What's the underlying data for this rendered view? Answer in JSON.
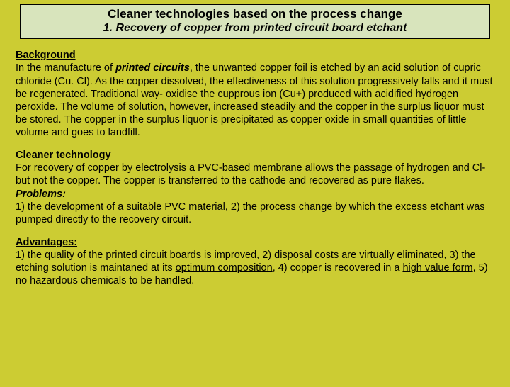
{
  "header": {
    "title": "Cleaner technologies based on the process change",
    "subtitle": "1. Recovery of copper from printed circuit board etchant"
  },
  "background": {
    "heading": "Background",
    "t1": "In the manufacture of ",
    "t2": "printed circuits",
    "t3": ", the unwanted copper foil is etched by an acid solution of cupric chloride (Cu. Cl). As the copper dissolved, the effectiveness of this solution progressively falls and it must be regenerated. Traditional way- oxidise the cupprous ion (Cu+) produced with  acidified hydrogen peroxide. The volume of solution, however, increased steadily and the copper in the surplus liquor must be stored. The copper in the surplus liquor is precipitated as copper oxide in small quantities of little volume and goes to landfill."
  },
  "cleaner": {
    "heading": "Cleaner technology",
    "t1": "For recovery of copper by electrolysis a ",
    "t2": "PVC-based membrane",
    "t3": " allows the passage of hydrogen and Cl- but not the copper. The copper is transferred  to the cathode and recovered as pure flakes.",
    "problems_heading": "Problems:",
    "problems_body": "1) the development of a suitable PVC material, 2) the process change by which the excess etchant was pumped directly to the recovery circuit."
  },
  "advantages": {
    "heading": "Advantages:",
    "a1_a": "1) the ",
    "a1_b": "quality",
    "a1_c": " of the printed circuit boards is ",
    "a1_d": "improved",
    "a2_a": ", 2) ",
    "a2_b": "disposal costs",
    "a2_c": " are virtually eliminated, 3) the etching solution is maintaned at its ",
    "a3_b": "optimum composition",
    "a4_a": ", 4) copper is recovered in a ",
    "a4_b": "high value form",
    "a5": ", 5) no hazardous chemicals to be handled."
  }
}
